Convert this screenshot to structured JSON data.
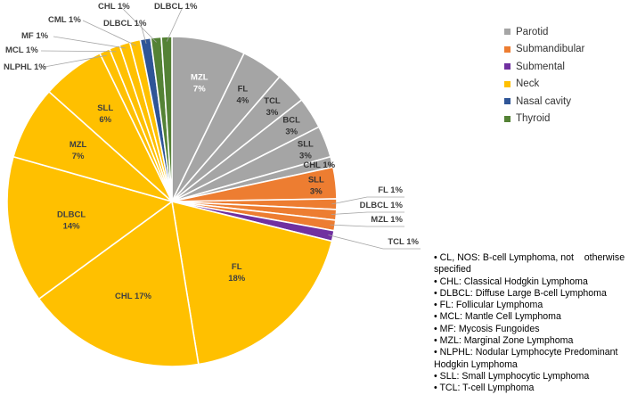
{
  "chart_data": {
    "type": "pie",
    "title": "",
    "start_angle_deg": 0,
    "direction": "clockwise",
    "groups": [
      {
        "name": "Parotid",
        "color": "#a5a5a5"
      },
      {
        "name": "Submandibular",
        "color": "#ed7d31"
      },
      {
        "name": "Submental",
        "color": "#7030a0"
      },
      {
        "name": "Neck",
        "color": "#ffc000"
      },
      {
        "name": "Nasal cavity",
        "color": "#2f5597"
      },
      {
        "name": "Thyroid",
        "color": "#548235"
      }
    ],
    "slices": [
      {
        "group": "Parotid",
        "name": "MZL",
        "value": 7,
        "label": "7%",
        "label_style": "inside",
        "text_color": "#ffffff"
      },
      {
        "group": "Parotid",
        "name": "FL",
        "value": 4,
        "label": "4%",
        "label_style": "inside",
        "text_color": "#333333"
      },
      {
        "group": "Parotid",
        "name": "TCL",
        "value": 3,
        "label": "3%",
        "label_style": "inside",
        "text_color": "#333333"
      },
      {
        "group": "Parotid",
        "name": "BCL",
        "value": 3,
        "label": "3%",
        "label_style": "inside",
        "text_color": "#333333"
      },
      {
        "group": "Parotid",
        "name": "SLL",
        "value": 3,
        "label": "3%",
        "label_style": "inside",
        "text_color": "#333333"
      },
      {
        "group": "Parotid",
        "name": "CHL",
        "value": 1,
        "label": "CHL 1%",
        "label_style": "inside",
        "text_color": "#333333"
      },
      {
        "group": "Submandibular",
        "name": "SLL",
        "value": 3,
        "label": "3%",
        "label_style": "inside",
        "text_color": "#333333"
      },
      {
        "group": "Submandibular",
        "name": "FL",
        "value": 1,
        "label": "FL 1%",
        "label_style": "leader",
        "text_color": "#404040"
      },
      {
        "group": "Submandibular",
        "name": "DLBCL",
        "value": 1,
        "label": "DLBCL 1%",
        "label_style": "leader",
        "text_color": "#404040"
      },
      {
        "group": "Submandibular",
        "name": "MZL",
        "value": 1,
        "label": "MZL 1%",
        "label_style": "leader",
        "text_color": "#404040"
      },
      {
        "group": "Submental",
        "name": "TCL",
        "value": 1,
        "label": "TCL 1%",
        "label_style": "leader",
        "text_color": "#404040"
      },
      {
        "group": "Neck",
        "name": "FL",
        "value": 18,
        "label": "18%",
        "label_style": "inside",
        "text_color": "#404040"
      },
      {
        "group": "Neck",
        "name": "CHL",
        "value": 17,
        "label": "CHL 17%",
        "label_style": "inside",
        "text_color": "#404040"
      },
      {
        "group": "Neck",
        "name": "DLBCL",
        "value": 14,
        "label": "14%",
        "label_style": "inside",
        "text_color": "#404040"
      },
      {
        "group": "Neck",
        "name": "MZL",
        "value": 7,
        "label": "7%",
        "label_style": "inside",
        "text_color": "#404040"
      },
      {
        "group": "Neck",
        "name": "SLL",
        "value": 6,
        "label": "6%",
        "label_style": "inside",
        "text_color": "#404040"
      },
      {
        "group": "Neck",
        "name": "NLPHL",
        "value": 1,
        "label": "NLPHL 1%",
        "label_style": "leader",
        "text_color": "#404040"
      },
      {
        "group": "Neck",
        "name": "MCL",
        "value": 1,
        "label": "MCL 1%",
        "label_style": "leader",
        "text_color": "#404040"
      },
      {
        "group": "Neck",
        "name": "MF",
        "value": 1,
        "label": "MF 1%",
        "label_style": "leader",
        "text_color": "#404040"
      },
      {
        "group": "Neck",
        "name": "CML",
        "value": 1,
        "label": "CML 1%",
        "label_style": "leader",
        "text_color": "#404040"
      },
      {
        "group": "Nasal cavity",
        "name": "DLBCL",
        "value": 1,
        "label": "DLBCL 1%",
        "label_style": "leader",
        "text_color": "#404040"
      },
      {
        "group": "Thyroid",
        "name": "CHL",
        "value": 1,
        "label": "CHL 1%",
        "label_style": "leader",
        "text_color": "#404040"
      },
      {
        "group": "Thyroid",
        "name": "DLBCL",
        "value": 1,
        "label": "DLBCL 1%",
        "label_style": "leader",
        "text_color": "#404040"
      }
    ],
    "legend": [
      "Parotid",
      "Submandibular",
      "Submental",
      "Neck",
      "Nasal cavity",
      "Thyroid"
    ],
    "legend_position": "top-right"
  },
  "abbreviations": [
    "• CL, NOS: B-cell Lymphoma, not    otherwise specified",
    "• CHL: Classical Hodgkin Lymphoma",
    "• DLBCL: Diffuse Large B-cell Lymphoma",
    "• FL: Follicular Lymphoma",
    "• MCL: Mantle Cell Lymphoma",
    "• MF: Mycosis Fungoides",
    "• MZL: Marginal Zone Lymphoma",
    "• NLPHL: Nodular Lymphocyte Predominant Hodgkin Lymphoma",
    "• SLL: Small Lymphocytic Lymphoma",
    "• TCL: T-cell Lymphoma"
  ]
}
